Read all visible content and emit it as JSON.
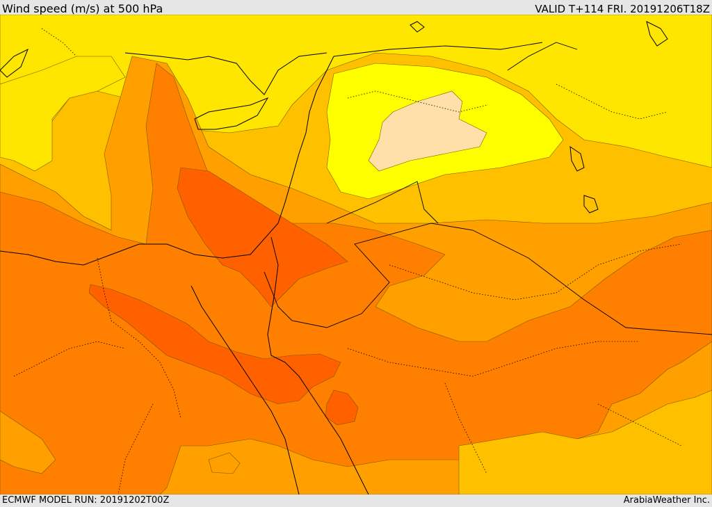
{
  "header": {
    "title": "Wind speed (m/s) at 500 hPa",
    "valid_time": "VALID T+114 FRI. 20191206T18Z"
  },
  "footer": {
    "model_run": "ECMWF MODEL RUN: 20191202T00Z",
    "provider": "ArabiaWeather Inc."
  },
  "map": {
    "variable": "wind speed",
    "level": "500 hPa",
    "contour_colors": {
      "lightest": "#ffe0a8",
      "yellow_bright": "#ffff00",
      "yellow": "#ffe600",
      "gold": "#ffc000",
      "orange_light": "#ffa000",
      "orange": "#ff8000",
      "orange_dark": "#ff6000"
    },
    "line_styles": {
      "coastline": "solid black",
      "country_border": "solid black",
      "admin_border": "dotted black"
    }
  }
}
